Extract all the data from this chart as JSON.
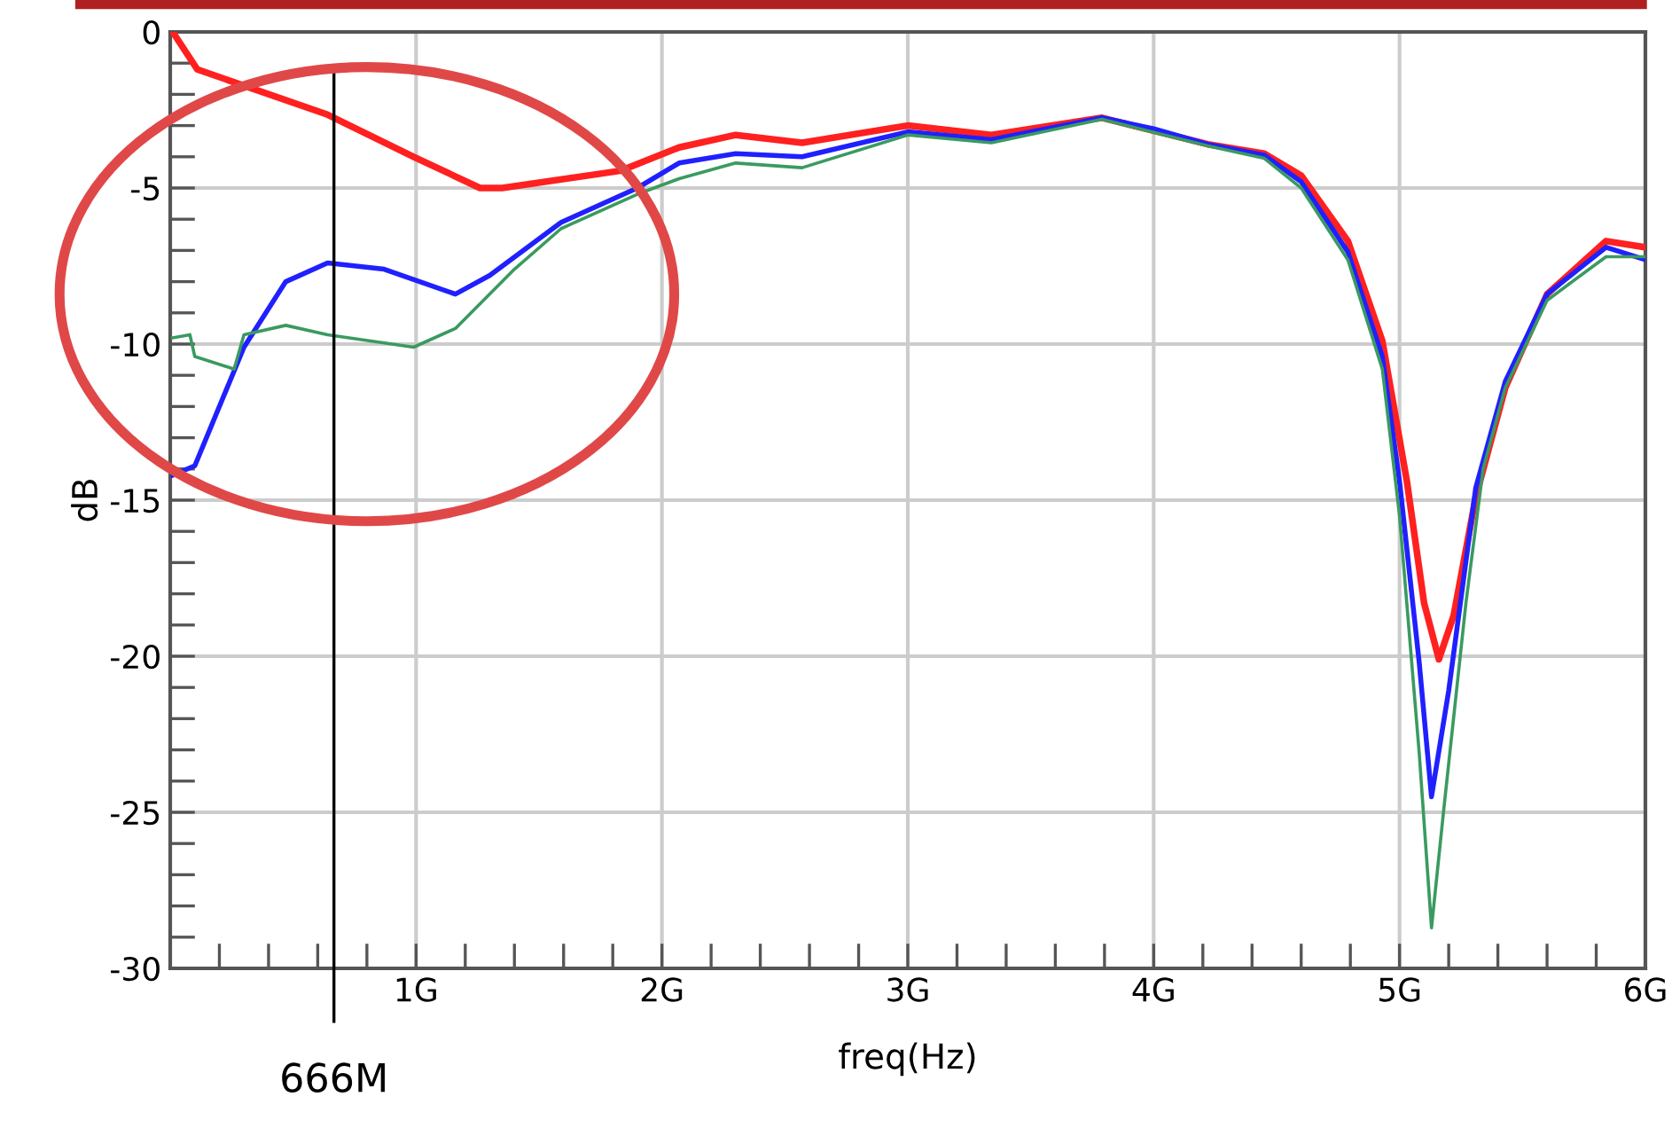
{
  "chart_data": {
    "type": "line",
    "xlabel": "freq(Hz)",
    "ylabel": "dB",
    "grid": true,
    "legend": false,
    "xlim": [
      0,
      6
    ],
    "ylim": [
      -30,
      0
    ],
    "xticks": [
      {
        "value": 0,
        "label": null
      },
      {
        "value": 0.2,
        "label": null
      },
      {
        "value": 0.4,
        "label": null
      },
      {
        "value": 0.6,
        "label": null
      },
      {
        "value": 0.8,
        "label": null
      },
      {
        "value": 1,
        "label": "1G"
      },
      {
        "value": 1.2,
        "label": null
      },
      {
        "value": 1.4,
        "label": null
      },
      {
        "value": 1.6,
        "label": null
      },
      {
        "value": 1.8,
        "label": null
      },
      {
        "value": 2,
        "label": "2G"
      },
      {
        "value": 2.2,
        "label": null
      },
      {
        "value": 2.4,
        "label": null
      },
      {
        "value": 2.6,
        "label": null
      },
      {
        "value": 2.8,
        "label": null
      },
      {
        "value": 3,
        "label": "3G"
      },
      {
        "value": 3.2,
        "label": null
      },
      {
        "value": 3.4,
        "label": null
      },
      {
        "value": 3.6,
        "label": null
      },
      {
        "value": 3.8,
        "label": null
      },
      {
        "value": 4,
        "label": "4G"
      },
      {
        "value": 4.2,
        "label": null
      },
      {
        "value": 4.4,
        "label": null
      },
      {
        "value": 4.6,
        "label": null
      },
      {
        "value": 4.8,
        "label": null
      },
      {
        "value": 5,
        "label": "5G"
      },
      {
        "value": 5.2,
        "label": null
      },
      {
        "value": 5.4,
        "label": null
      },
      {
        "value": 5.6,
        "label": null
      },
      {
        "value": 5.8,
        "label": null
      },
      {
        "value": 6,
        "label": "6G"
      }
    ],
    "yticks": [
      {
        "value": -30,
        "label": "-30"
      },
      {
        "value": -29,
        "label": null
      },
      {
        "value": -28,
        "label": null
      },
      {
        "value": -27,
        "label": null
      },
      {
        "value": -26,
        "label": null
      },
      {
        "value": -25,
        "label": "-25"
      },
      {
        "value": -24,
        "label": null
      },
      {
        "value": -23,
        "label": null
      },
      {
        "value": -22,
        "label": null
      },
      {
        "value": -21,
        "label": null
      },
      {
        "value": -20,
        "label": "-20"
      },
      {
        "value": -19,
        "label": null
      },
      {
        "value": -18,
        "label": null
      },
      {
        "value": -17,
        "label": null
      },
      {
        "value": -16,
        "label": null
      },
      {
        "value": -15,
        "label": "-15"
      },
      {
        "value": -14,
        "label": null
      },
      {
        "value": -13,
        "label": null
      },
      {
        "value": -12,
        "label": null
      },
      {
        "value": -11,
        "label": null
      },
      {
        "value": -10,
        "label": "-10"
      },
      {
        "value": -9,
        "label": null
      },
      {
        "value": -8,
        "label": null
      },
      {
        "value": -7,
        "label": null
      },
      {
        "value": -6,
        "label": null
      },
      {
        "value": -5,
        "label": "-5"
      },
      {
        "value": -4,
        "label": null
      },
      {
        "value": -3,
        "label": null
      },
      {
        "value": -2,
        "label": null
      },
      {
        "value": -1,
        "label": null
      },
      {
        "value": 0,
        "label": "0"
      }
    ],
    "ref_lines": [
      {
        "axis": "x",
        "value": 0.666,
        "label": "666M",
        "color": "#000000"
      }
    ],
    "series": [
      {
        "color": "#ff2020",
        "x": [
          0.01,
          0.11,
          0.64,
          0.99,
          1.26,
          1.35,
          1.83,
          2.07,
          2.3,
          2.57,
          3.0,
          3.34,
          3.79,
          4.22,
          4.45,
          4.6,
          4.79,
          4.93,
          5.03,
          5.1,
          5.16,
          5.22,
          5.31,
          5.43,
          5.6,
          5.84,
          6.0
        ],
        "values": [
          0,
          -1.2,
          -2.65,
          -4.0,
          -5.0,
          -5.0,
          -4.45,
          -3.7,
          -3.3,
          -3.55,
          -3.0,
          -3.3,
          -2.75,
          -3.6,
          -3.9,
          -4.6,
          -6.7,
          -9.9,
          -14.4,
          -18.3,
          -20.1,
          -18.7,
          -14.9,
          -11.4,
          -8.4,
          -6.7,
          -6.9
        ]
      },
      {
        "color": "#2020ff",
        "x": [
          0.01,
          0.1,
          0.3,
          0.47,
          0.64,
          0.87,
          1.16,
          1.3,
          1.59,
          1.9,
          2.07,
          2.3,
          2.57,
          3.0,
          3.34,
          3.79,
          4.0,
          4.22,
          4.45,
          4.6,
          4.79,
          4.93,
          5.0,
          5.08,
          5.13,
          5.2,
          5.31,
          5.43,
          5.6,
          5.84,
          6.0
        ],
        "values": [
          -14.2,
          -13.9,
          -10.1,
          -8.0,
          -7.4,
          -7.6,
          -8.4,
          -7.8,
          -6.1,
          -5.0,
          -4.2,
          -3.9,
          -4.0,
          -3.2,
          -3.45,
          -2.75,
          -3.1,
          -3.6,
          -3.95,
          -4.8,
          -7.05,
          -10.4,
          -14.4,
          -20.2,
          -24.5,
          -21.1,
          -14.6,
          -11.2,
          -8.4,
          -6.9,
          -7.3
        ]
      },
      {
        "color": "#3a9a60",
        "x": [
          0.01,
          0.08,
          0.1,
          0.26,
          0.3,
          0.47,
          0.64,
          0.99,
          1.16,
          1.4,
          1.59,
          1.9,
          2.07,
          2.3,
          2.57,
          3.0,
          3.34,
          3.79,
          4.22,
          4.45,
          4.6,
          4.79,
          4.93,
          5.0,
          5.08,
          5.13,
          5.18,
          5.27,
          5.34,
          5.43,
          5.6,
          5.84,
          6.0
        ],
        "values": [
          -9.8,
          -9.7,
          -10.4,
          -10.8,
          -9.7,
          -9.4,
          -9.7,
          -10.1,
          -9.5,
          -7.6,
          -6.3,
          -5.2,
          -4.7,
          -4.2,
          -4.35,
          -3.3,
          -3.55,
          -2.8,
          -3.65,
          -4.05,
          -5.0,
          -7.3,
          -10.8,
          -15.5,
          -23.1,
          -28.7,
          -24.9,
          -18.3,
          -14.0,
          -11.4,
          -8.6,
          -7.2,
          -7.2
        ]
      }
    ]
  }
}
